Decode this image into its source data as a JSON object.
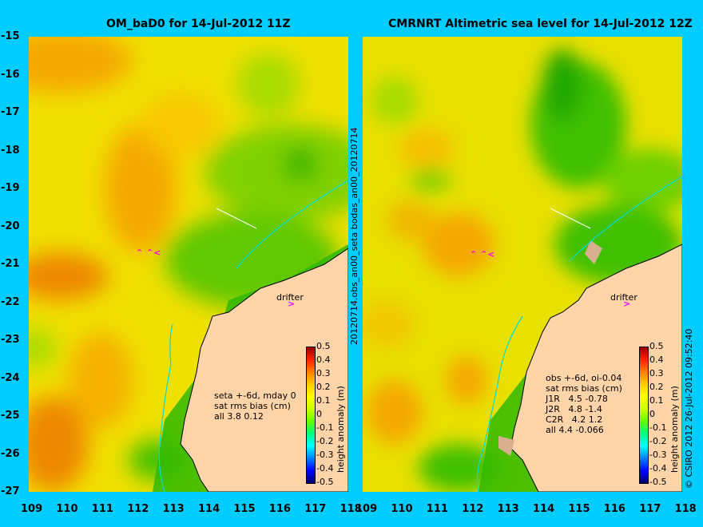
{
  "left_panel": {
    "title": "OM_baD0 for 14-Jul-2012 11Z",
    "info": "seta +-6d, mday 0\nsat rms bias (cm)\nall 3.8 0.12",
    "drifter": "drifter"
  },
  "right_panel": {
    "title": "CMRNRT Altimetric sea level  for 14-Jul-2012 12Z",
    "info": "obs +-6d, oi-0.04\nsat rms bias (cm)\nJ1R   4.5 -0.78\nJ2R   4.8 -1.4\nC2R   4.2 1.2\nall 4.4 -0.066",
    "drifter": "drifter"
  },
  "center_vertical_label": "20120714.obs_an00_seta    bodas_an00_20120714",
  "credit": "© CSIRO 2012   26-Jul-2012 09:52:40",
  "lat_ticks": [
    "-15",
    "-16",
    "-17",
    "-18",
    "-19",
    "-20",
    "-21",
    "-22",
    "-23",
    "-24",
    "-25",
    "-26",
    "-27"
  ],
  "lon_ticks_left": [
    "109",
    "110",
    "111",
    "112",
    "113",
    "114",
    "115",
    "116",
    "117",
    "118"
  ],
  "lon_ticks_right": [
    "109",
    "110",
    "111",
    "112",
    "113",
    "114",
    "115",
    "116",
    "117",
    "118"
  ],
  "colorbar": {
    "title": "height anomaly (m)",
    "ticks": [
      "0.5",
      "0.4",
      "0.3",
      "0.2",
      "0.1",
      "0",
      "-0.1",
      "-0.2",
      "-0.3",
      "-0.4",
      "-0.5"
    ]
  },
  "colors": {
    "background": "#00ccff",
    "land": "#ffd4a8",
    "drifter_arrow": "#ff00ff"
  }
}
